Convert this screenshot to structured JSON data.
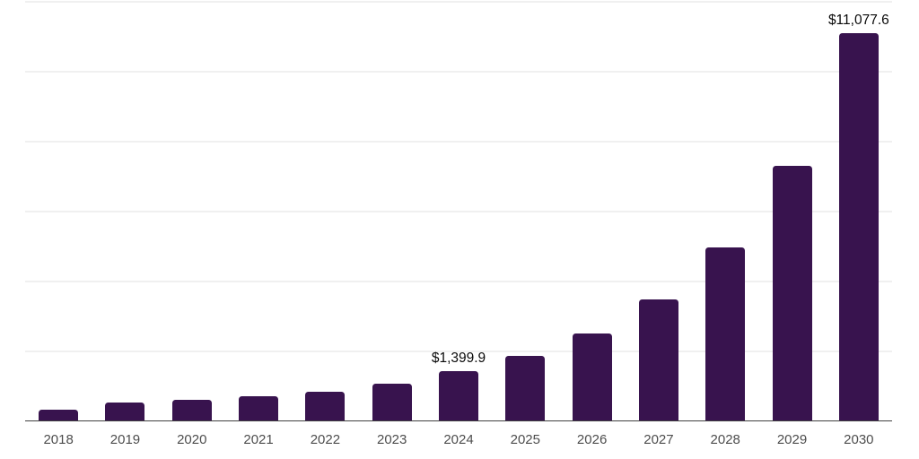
{
  "chart_data": {
    "type": "bar",
    "title": "",
    "xlabel": "",
    "ylabel": "",
    "categories": [
      "2018",
      "2019",
      "2020",
      "2021",
      "2022",
      "2023",
      "2024",
      "2025",
      "2026",
      "2027",
      "2028",
      "2029",
      "2030"
    ],
    "values": [
      310,
      510,
      590,
      690,
      820,
      1050,
      1399.9,
      1840,
      2480,
      3450,
      4940,
      7290,
      11077.6
    ],
    "annotations": [
      {
        "category": "2024",
        "label": "$1,399.9"
      },
      {
        "category": "2030",
        "label": "$11,077.6"
      }
    ],
    "ylim": [
      0,
      12000
    ],
    "y_gridline_step": 2000,
    "grid": "horizontal-only",
    "y_axis_labels": "none",
    "legend": "none",
    "colors": {
      "bar": "#38134e",
      "gridline": "#f0f0f0",
      "axis_line": "#3f3f3f",
      "tick_label": "#4d4d4d",
      "data_label": "#0a0a0a"
    }
  }
}
